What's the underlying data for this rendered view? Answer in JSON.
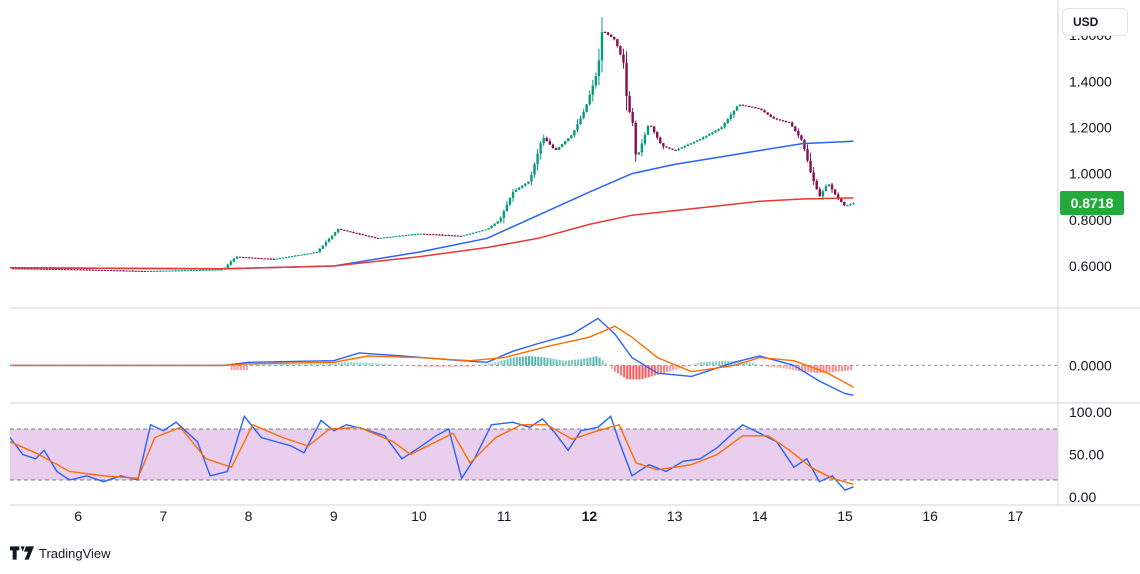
{
  "header": {
    "currency": "USD"
  },
  "footer": {
    "brand": "TradingView"
  },
  "last_price": "0.8718",
  "colors": {
    "up": "#089981",
    "down": "#880e4f",
    "ma_fast": "#2962ff",
    "ma_slow": "#e53935",
    "macd": "#2962ff",
    "signal": "#ff6d00",
    "hist_up": "#26a69a",
    "hist_down": "#ff5252",
    "rsi": "#2962ff",
    "rsi_ma": "#ff6d00",
    "rsi_band": "#e1bee7",
    "badge": "#22ab3a"
  },
  "chart_data": [
    {
      "type": "candlestick",
      "title": "",
      "x_ticks": [
        "6",
        "7",
        "8",
        "9",
        "10",
        "11",
        "12",
        "13",
        "14",
        "15",
        "16",
        "17"
      ],
      "x_ticks_bold": [
        "12"
      ],
      "y_ticks": [
        "1.6000",
        "1.4000",
        "1.2000",
        "1.0000",
        "0.8000",
        "0.6000"
      ],
      "ylim": [
        0.47,
        1.7
      ],
      "xlim": [
        5.2,
        17.5
      ],
      "last_value": 0.8718,
      "close_path": [
        [
          5.2,
          0.59
        ],
        [
          6.0,
          0.585
        ],
        [
          6.8,
          0.578
        ],
        [
          7.7,
          0.585
        ],
        [
          7.85,
          0.64
        ],
        [
          8.3,
          0.63
        ],
        [
          8.8,
          0.66
        ],
        [
          9.05,
          0.76
        ],
        [
          9.5,
          0.72
        ],
        [
          10.0,
          0.74
        ],
        [
          10.5,
          0.73
        ],
        [
          10.8,
          0.76
        ],
        [
          10.95,
          0.8
        ],
        [
          11.1,
          0.92
        ],
        [
          11.3,
          0.97
        ],
        [
          11.45,
          1.16
        ],
        [
          11.6,
          1.1
        ],
        [
          11.8,
          1.17
        ],
        [
          11.95,
          1.28
        ],
        [
          12.1,
          1.45
        ],
        [
          12.15,
          1.62
        ],
        [
          12.3,
          1.58
        ],
        [
          12.4,
          1.48
        ],
        [
          12.45,
          1.28
        ],
        [
          12.5,
          1.25
        ],
        [
          12.55,
          1.06
        ],
        [
          12.7,
          1.22
        ],
        [
          12.85,
          1.12
        ],
        [
          13.0,
          1.1
        ],
        [
          13.3,
          1.15
        ],
        [
          13.55,
          1.2
        ],
        [
          13.75,
          1.3
        ],
        [
          14.0,
          1.28
        ],
        [
          14.15,
          1.24
        ],
        [
          14.35,
          1.22
        ],
        [
          14.5,
          1.14
        ],
        [
          14.6,
          1.0
        ],
        [
          14.7,
          0.9
        ],
        [
          14.8,
          0.96
        ],
        [
          14.9,
          0.9
        ],
        [
          15.0,
          0.86
        ],
        [
          15.1,
          0.8718
        ]
      ],
      "series": [
        {
          "name": "",
          "role": "ma_fast",
          "points": [
            [
              5.2,
              0.592
            ],
            [
              7.7,
              0.588
            ],
            [
              9.0,
              0.6
            ],
            [
              10.0,
              0.66
            ],
            [
              10.8,
              0.72
            ],
            [
              11.4,
              0.82
            ],
            [
              12.0,
              0.92
            ],
            [
              12.5,
              1.0
            ],
            [
              13.0,
              1.04
            ],
            [
              13.5,
              1.07
            ],
            [
              14.0,
              1.1
            ],
            [
              14.5,
              1.13
            ],
            [
              15.1,
              1.14
            ]
          ]
        },
        {
          "name": "",
          "role": "ma_slow",
          "points": [
            [
              5.2,
              0.592
            ],
            [
              7.7,
              0.588
            ],
            [
              9.0,
              0.6
            ],
            [
              10.0,
              0.64
            ],
            [
              10.8,
              0.68
            ],
            [
              11.4,
              0.72
            ],
            [
              12.0,
              0.78
            ],
            [
              12.5,
              0.82
            ],
            [
              13.0,
              0.84
            ],
            [
              13.5,
              0.86
            ],
            [
              14.0,
              0.88
            ],
            [
              14.5,
              0.89
            ],
            [
              15.1,
              0.895
            ]
          ]
        }
      ]
    },
    {
      "type": "line",
      "title": "",
      "y_ticks": [
        "0.0000"
      ],
      "ylim": [
        -0.24,
        0.36
      ],
      "series": [
        {
          "name": "",
          "role": "macd",
          "points": [
            [
              5.2,
              0
            ],
            [
              7.7,
              0
            ],
            [
              8.0,
              0.02
            ],
            [
              9.0,
              0.03
            ],
            [
              9.3,
              0.08
            ],
            [
              9.8,
              0.06
            ],
            [
              10.5,
              0.03
            ],
            [
              10.8,
              0.02
            ],
            [
              11.1,
              0.09
            ],
            [
              11.4,
              0.14
            ],
            [
              11.8,
              0.2
            ],
            [
              12.1,
              0.3
            ],
            [
              12.3,
              0.2
            ],
            [
              12.5,
              0.05
            ],
            [
              12.8,
              -0.05
            ],
            [
              13.2,
              -0.07
            ],
            [
              13.7,
              0.02
            ],
            [
              14.0,
              0.06
            ],
            [
              14.4,
              0.0
            ],
            [
              14.7,
              -0.1
            ],
            [
              15.0,
              -0.18
            ],
            [
              15.1,
              -0.19
            ]
          ]
        },
        {
          "name": "",
          "role": "signal",
          "points": [
            [
              5.2,
              0
            ],
            [
              7.7,
              0
            ],
            [
              8.0,
              0.01
            ],
            [
              9.0,
              0.02
            ],
            [
              9.4,
              0.06
            ],
            [
              10.0,
              0.05
            ],
            [
              10.6,
              0.03
            ],
            [
              11.0,
              0.05
            ],
            [
              11.5,
              0.12
            ],
            [
              12.0,
              0.18
            ],
            [
              12.3,
              0.25
            ],
            [
              12.5,
              0.18
            ],
            [
              12.8,
              0.05
            ],
            [
              13.2,
              -0.04
            ],
            [
              13.7,
              0.0
            ],
            [
              14.0,
              0.05
            ],
            [
              14.4,
              0.03
            ],
            [
              14.8,
              -0.05
            ],
            [
              15.1,
              -0.14
            ]
          ]
        },
        {
          "name": "",
          "role": "histogram",
          "points": [
            [
              8.0,
              0.01
            ],
            [
              8.4,
              0.01
            ],
            [
              8.8,
              0.01
            ],
            [
              9.1,
              0.02
            ],
            [
              9.3,
              0.02
            ],
            [
              9.6,
              0.01
            ],
            [
              10.0,
              -0.01
            ],
            [
              10.3,
              -0.01
            ],
            [
              10.6,
              -0.01
            ],
            [
              10.9,
              0.02
            ],
            [
              11.1,
              0.05
            ],
            [
              11.3,
              0.06
            ],
            [
              11.5,
              0.05
            ],
            [
              11.7,
              0.03
            ],
            [
              11.9,
              0.04
            ],
            [
              12.1,
              0.06
            ],
            [
              12.3,
              -0.04
            ],
            [
              12.45,
              -0.09
            ],
            [
              12.6,
              -0.09
            ],
            [
              12.8,
              -0.06
            ],
            [
              13.0,
              -0.03
            ],
            [
              13.3,
              0.02
            ],
            [
              13.6,
              0.03
            ],
            [
              13.9,
              0.02
            ],
            [
              14.1,
              -0.01
            ],
            [
              14.3,
              -0.02
            ],
            [
              14.5,
              -0.04
            ],
            [
              14.7,
              -0.05
            ],
            [
              14.9,
              -0.04
            ],
            [
              15.1,
              -0.03
            ]
          ]
        }
      ]
    },
    {
      "type": "line",
      "title": "",
      "y_ticks": [
        "100.00",
        "50.00",
        "0.00"
      ],
      "ylim": [
        0,
        100
      ],
      "band": [
        20,
        80
      ],
      "series": [
        {
          "name": "",
          "role": "rsi",
          "points": [
            [
              5.2,
              70
            ],
            [
              5.35,
              50
            ],
            [
              5.5,
              45
            ],
            [
              5.6,
              55
            ],
            [
              5.75,
              30
            ],
            [
              5.9,
              20
            ],
            [
              6.1,
              25
            ],
            [
              6.3,
              18
            ],
            [
              6.5,
              25
            ],
            [
              6.7,
              20
            ],
            [
              6.85,
              85
            ],
            [
              7.0,
              78
            ],
            [
              7.15,
              88
            ],
            [
              7.4,
              65
            ],
            [
              7.55,
              25
            ],
            [
              7.75,
              30
            ],
            [
              7.95,
              95
            ],
            [
              8.15,
              70
            ],
            [
              8.5,
              60
            ],
            [
              8.65,
              52
            ],
            [
              8.85,
              90
            ],
            [
              9.0,
              78
            ],
            [
              9.15,
              85
            ],
            [
              9.35,
              80
            ],
            [
              9.6,
              72
            ],
            [
              9.8,
              45
            ],
            [
              10.0,
              58
            ],
            [
              10.2,
              72
            ],
            [
              10.35,
              80
            ],
            [
              10.5,
              22
            ],
            [
              10.65,
              45
            ],
            [
              10.85,
              85
            ],
            [
              11.1,
              88
            ],
            [
              11.3,
              82
            ],
            [
              11.45,
              92
            ],
            [
              11.6,
              75
            ],
            [
              11.75,
              55
            ],
            [
              11.9,
              78
            ],
            [
              12.1,
              82
            ],
            [
              12.25,
              95
            ],
            [
              12.35,
              65
            ],
            [
              12.5,
              25
            ],
            [
              12.7,
              38
            ],
            [
              12.9,
              30
            ],
            [
              13.1,
              42
            ],
            [
              13.3,
              45
            ],
            [
              13.5,
              58
            ],
            [
              13.65,
              72
            ],
            [
              13.8,
              85
            ],
            [
              14.0,
              75
            ],
            [
              14.2,
              65
            ],
            [
              14.4,
              35
            ],
            [
              14.55,
              45
            ],
            [
              14.7,
              18
            ],
            [
              14.85,
              25
            ],
            [
              15.0,
              8
            ],
            [
              15.1,
              12
            ]
          ]
        },
        {
          "name": "",
          "role": "rsi_ma",
          "points": [
            [
              5.2,
              65
            ],
            [
              5.5,
              52
            ],
            [
              5.9,
              30
            ],
            [
              6.3,
              25
            ],
            [
              6.7,
              22
            ],
            [
              6.9,
              70
            ],
            [
              7.2,
              82
            ],
            [
              7.5,
              45
            ],
            [
              7.8,
              35
            ],
            [
              8.05,
              85
            ],
            [
              8.4,
              70
            ],
            [
              8.7,
              60
            ],
            [
              8.95,
              80
            ],
            [
              9.3,
              82
            ],
            [
              9.7,
              65
            ],
            [
              9.9,
              50
            ],
            [
              10.2,
              65
            ],
            [
              10.4,
              75
            ],
            [
              10.6,
              40
            ],
            [
              10.9,
              70
            ],
            [
              11.2,
              85
            ],
            [
              11.5,
              85
            ],
            [
              11.8,
              68
            ],
            [
              12.1,
              78
            ],
            [
              12.35,
              85
            ],
            [
              12.55,
              40
            ],
            [
              12.8,
              32
            ],
            [
              13.2,
              38
            ],
            [
              13.5,
              50
            ],
            [
              13.8,
              72
            ],
            [
              14.1,
              72
            ],
            [
              14.35,
              55
            ],
            [
              14.6,
              35
            ],
            [
              14.85,
              22
            ],
            [
              15.1,
              15
            ]
          ]
        }
      ]
    }
  ]
}
